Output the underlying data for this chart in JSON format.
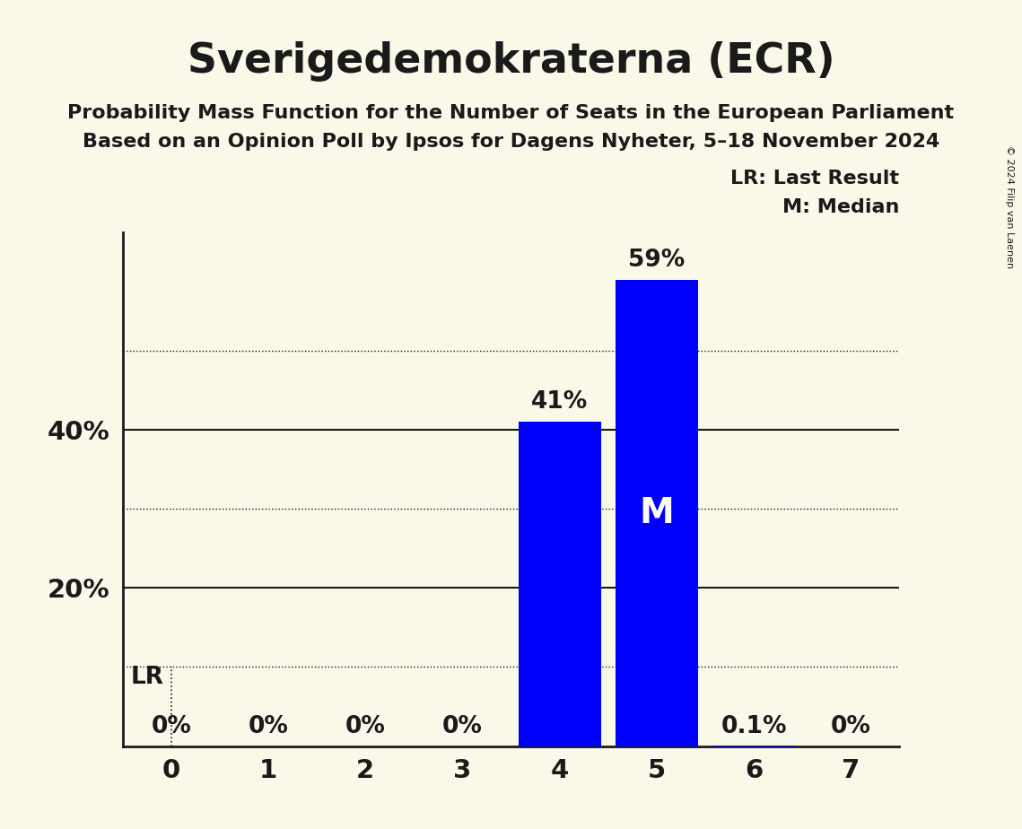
{
  "title": "Sverigedemokraterna (ECR)",
  "subtitle1": "Probability Mass Function for the Number of Seats in the European Parliament",
  "subtitle2": "Based on an Opinion Poll by Ipsos for Dagens Nyheter, 5–18 November 2024",
  "copyright": "© 2024 Filip van Laenen",
  "categories": [
    0,
    1,
    2,
    3,
    4,
    5,
    6,
    7
  ],
  "values": [
    0.0,
    0.0,
    0.0,
    0.0,
    0.41,
    0.59,
    0.001,
    0.0
  ],
  "bar_color": "#0000ff",
  "background_color": "#faf8e8",
  "bar_labels": [
    "0%",
    "0%",
    "0%",
    "0%",
    "41%",
    "59%",
    "0.1%",
    "0%"
  ],
  "median_bar": 5,
  "lr_bar": 0,
  "solid_gridlines": [
    0.2,
    0.4
  ],
  "dotted_gridlines": [
    0.1,
    0.3,
    0.5
  ],
  "ytick_labels": [
    "20%",
    "40%"
  ],
  "ytick_values": [
    0.2,
    0.4
  ],
  "ylim": [
    0,
    0.65
  ],
  "xlim": [
    -0.5,
    7.5
  ]
}
